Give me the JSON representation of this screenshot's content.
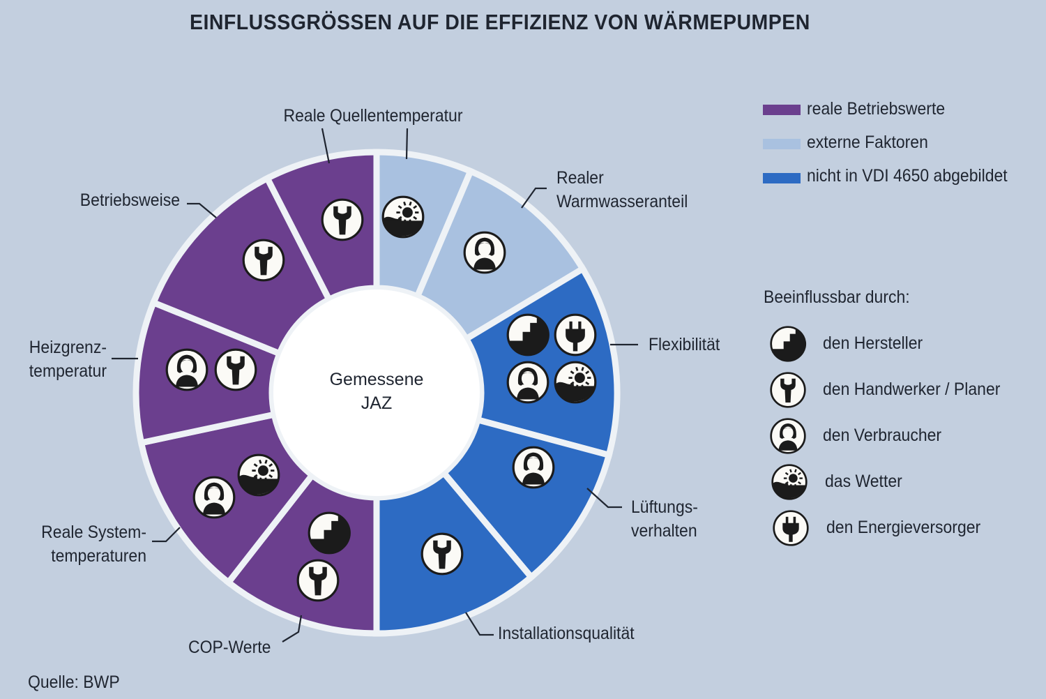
{
  "title": "EINFLUSSGRÖSSEN AUF DIE EFFIZIENZ VON WÄRMEPUMPEN",
  "center": {
    "line1": "Gemessene",
    "line2": "JAZ"
  },
  "colors": {
    "reale_betriebswerte": "#6b3f8e",
    "externe_faktoren": "#a9c1e0",
    "nicht_in_vdi": "#2d6bc3",
    "background": "#c3cfdf"
  },
  "segments": [
    {
      "label": [
        "Reale Quellentemperatur"
      ],
      "category": "externe_faktoren",
      "icons": [
        "weather-icon"
      ]
    },
    {
      "label": [
        "Realer",
        "Warmwasseranteil"
      ],
      "category": "externe_faktoren",
      "icons": [
        "consumer-icon"
      ]
    },
    {
      "label": [
        "Flexibilität"
      ],
      "category": "nicht_in_vdi",
      "icons": [
        "manufacturer-icon",
        "plug-icon",
        "consumer-icon",
        "weather-icon"
      ]
    },
    {
      "label": [
        "Lüftungs-",
        "verhalten"
      ],
      "category": "nicht_in_vdi",
      "icons": [
        "consumer-icon"
      ]
    },
    {
      "label": [
        "Installationsqualität"
      ],
      "category": "nicht_in_vdi",
      "icons": [
        "wrench-icon"
      ]
    },
    {
      "label": [
        "COP-Werte"
      ],
      "category": "reale_betriebswerte",
      "icons": [
        "manufacturer-icon",
        "wrench-icon"
      ]
    },
    {
      "label": [
        "Reale System-",
        "temperaturen"
      ],
      "category": "reale_betriebswerte",
      "icons": [
        "consumer-icon",
        "weather-icon"
      ]
    },
    {
      "label": [
        "Heizgrenz-",
        "temperatur"
      ],
      "category": "reale_betriebswerte",
      "icons": [
        "consumer-icon",
        "wrench-icon"
      ]
    },
    {
      "label": [
        "Betriebsweise"
      ],
      "category": "reale_betriebswerte",
      "icons": [
        "wrench-icon"
      ]
    },
    {
      "label": [
        "Reale Quellentemperatur"
      ],
      "category": "reale_betriebswerte",
      "icons": [
        "wrench-icon"
      ]
    }
  ],
  "legend": [
    {
      "label": "reale Betriebswerte",
      "category": "reale_betriebswerte"
    },
    {
      "label": "externe Faktoren",
      "category": "externe_faktoren"
    },
    {
      "label": "nicht in VDI 4650 abgebildet",
      "category": "nicht_in_vdi"
    }
  ],
  "influence": {
    "title": "Beeinflussbar durch:",
    "items": [
      {
        "label": "den Hersteller",
        "icon": "manufacturer-icon"
      },
      {
        "label": "den Handwerker / Planer",
        "icon": "wrench-icon"
      },
      {
        "label": "den Verbraucher",
        "icon": "consumer-icon"
      },
      {
        "label": "das Wetter",
        "icon": "weather-icon"
      },
      {
        "label": "den Energieversorger",
        "icon": "plug-icon"
      }
    ]
  },
  "source": "Quelle: BWP"
}
